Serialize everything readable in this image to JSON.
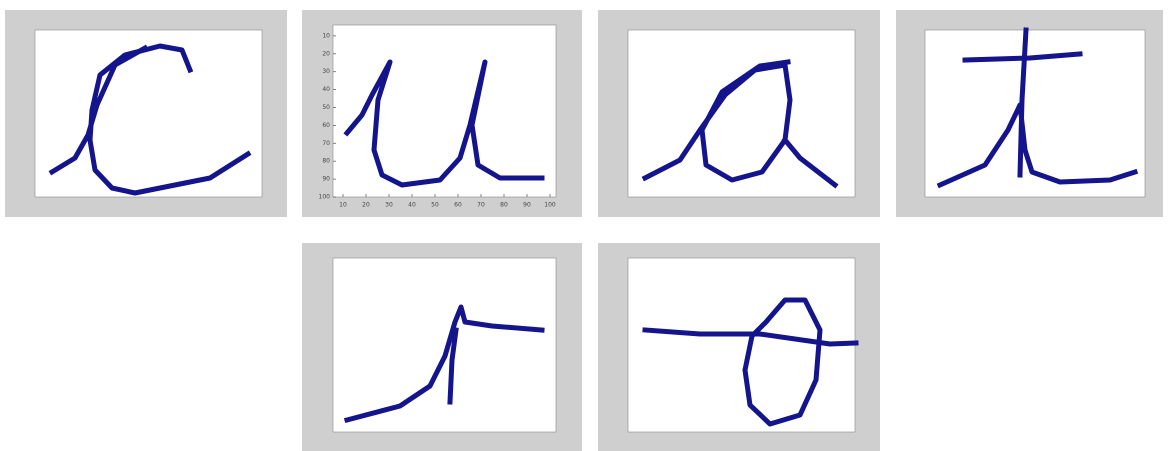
{
  "figure": {
    "panels": [
      {},
      {
        "xticks": [
          10,
          20,
          30,
          40,
          50,
          60,
          70,
          80,
          90,
          100
        ],
        "yticks": [
          10,
          20,
          30,
          40,
          50,
          60,
          70,
          80,
          90,
          100
        ]
      },
      {},
      {},
      {},
      {}
    ]
  }
}
